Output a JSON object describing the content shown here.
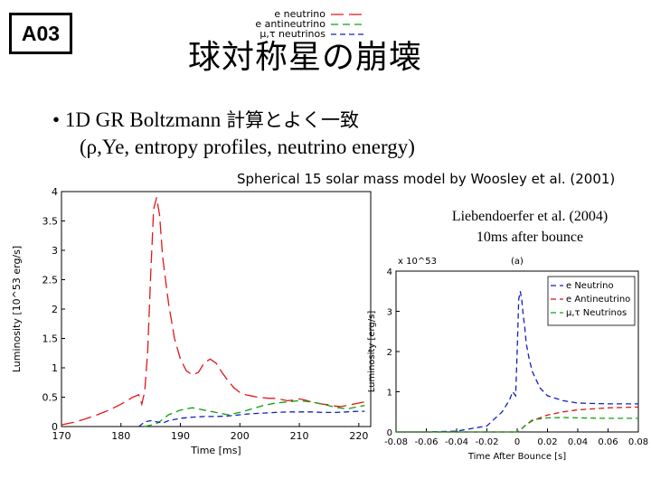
{
  "slide": {
    "badge": "A03",
    "title": "球対称星の崩壊",
    "bullet_marker": "•",
    "bullet_line1_en": "1D GR Boltzmann ",
    "bullet_line1_jp": "計算とよく一致",
    "bullet_line2": "(ρ,Ye, entropy profiles, neutrino energy)",
    "caption": "Spherical 15 solar mass model by Woosley et al. (2001)",
    "reference_line1": "Liebendoerfer et al. (2004)",
    "reference_line2": "10ms after bounce"
  },
  "chart_data": [
    {
      "type": "line",
      "xlabel": "Time [ms]",
      "ylabel": "Luminosity [10^53 erg/s]",
      "xlim": [
        170,
        222
      ],
      "ylim": [
        0,
        4
      ],
      "xticks": [
        "170",
        "180",
        "190",
        "200",
        "210",
        "220"
      ],
      "yticks": [
        "0",
        "0.5",
        "1",
        "1.5",
        "2",
        "2.5",
        "3",
        "3.5",
        "4"
      ],
      "legend_position": "top-right",
      "series": [
        {
          "name": "e neutrino",
          "color": "#e01818",
          "x": [
            170,
            172,
            174,
            176,
            178,
            180,
            182,
            183,
            183.5,
            184,
            184.5,
            185,
            185.5,
            186,
            186.5,
            187,
            188,
            189,
            190,
            191,
            192,
            193,
            194,
            195,
            196,
            197,
            198,
            199,
            200,
            201,
            202,
            203,
            204,
            205,
            206,
            207,
            208,
            209,
            210,
            211,
            212,
            213,
            214,
            215,
            216,
            217,
            218,
            219,
            220,
            221
          ],
          "y": [
            0.03,
            0.07,
            0.13,
            0.2,
            0.28,
            0.38,
            0.5,
            0.54,
            0.38,
            0.6,
            1.3,
            2.6,
            3.7,
            3.9,
            3.6,
            2.9,
            2.1,
            1.5,
            1.15,
            0.95,
            0.88,
            0.92,
            1.08,
            1.15,
            1.08,
            0.92,
            0.78,
            0.66,
            0.58,
            0.54,
            0.52,
            0.5,
            0.49,
            0.48,
            0.48,
            0.46,
            0.44,
            0.45,
            0.47,
            0.45,
            0.42,
            0.4,
            0.38,
            0.37,
            0.35,
            0.34,
            0.36,
            0.38,
            0.4,
            0.42
          ]
        },
        {
          "name": "e antineutrino",
          "color": "#10a010",
          "x": [
            184,
            186,
            187,
            188,
            190,
            192,
            194,
            196,
            198,
            200,
            202,
            204,
            206,
            208,
            210,
            212,
            214,
            216,
            218,
            220,
            221
          ],
          "y": [
            0.0,
            0.05,
            0.12,
            0.2,
            0.28,
            0.32,
            0.28,
            0.24,
            0.2,
            0.24,
            0.3,
            0.36,
            0.4,
            0.42,
            0.44,
            0.42,
            0.38,
            0.33,
            0.3,
            0.34,
            0.36
          ]
        },
        {
          "name": "μ,τ neutrinos",
          "color": "#1020c0",
          "x": [
            183,
            184,
            185,
            186,
            187,
            188,
            190,
            192,
            194,
            196,
            198,
            200,
            202,
            204,
            206,
            208,
            210,
            212,
            214,
            216,
            218,
            220,
            221
          ],
          "y": [
            0.0,
            0.08,
            0.1,
            0.08,
            0.06,
            0.1,
            0.14,
            0.16,
            0.17,
            0.17,
            0.18,
            0.2,
            0.22,
            0.23,
            0.24,
            0.25,
            0.25,
            0.25,
            0.24,
            0.24,
            0.25,
            0.26,
            0.26
          ]
        }
      ]
    },
    {
      "type": "line",
      "title": "(a)",
      "xlabel": "Time After Bounce [s]",
      "ylabel": "Luminosity [erg/s]",
      "y_multiplier": "x 10^53",
      "xlim": [
        -0.08,
        0.08
      ],
      "ylim": [
        0,
        4
      ],
      "xticks": [
        "-0.08",
        "-0.06",
        "-0.04",
        "-0.02",
        "0",
        "0.02",
        "0.04",
        "0.06",
        "0.08"
      ],
      "yticks": [
        "0",
        "1",
        "2",
        "3",
        "4"
      ],
      "legend_position": "top-right",
      "series": [
        {
          "name": "e Neutrino",
          "color": "#1020c0",
          "x": [
            -0.08,
            -0.06,
            -0.04,
            -0.02,
            -0.01,
            -0.005,
            -0.003,
            -0.001,
            0.0,
            0.001,
            0.002,
            0.003,
            0.004,
            0.005,
            0.006,
            0.008,
            0.01,
            0.015,
            0.02,
            0.03,
            0.04,
            0.06,
            0.08
          ],
          "y": [
            0.0,
            0.0,
            0.02,
            0.15,
            0.5,
            0.8,
            1.0,
            0.9,
            2.0,
            3.3,
            3.5,
            3.3,
            2.9,
            2.6,
            2.2,
            1.8,
            1.5,
            1.1,
            0.9,
            0.78,
            0.72,
            0.7,
            0.7
          ]
        },
        {
          "name": "e Antineutrino",
          "color": "#d01818",
          "x": [
            -0.08,
            -0.02,
            0.0,
            0.002,
            0.005,
            0.01,
            0.02,
            0.03,
            0.04,
            0.06,
            0.08
          ],
          "y": [
            0.0,
            0.0,
            0.0,
            0.05,
            0.15,
            0.28,
            0.42,
            0.5,
            0.55,
            0.6,
            0.62
          ]
        },
        {
          "name": "μ,τ Neutrinos",
          "color": "#10a010",
          "x": [
            -0.08,
            -0.02,
            0.0,
            0.002,
            0.005,
            0.01,
            0.02,
            0.03,
            0.04,
            0.06,
            0.08
          ],
          "y": [
            0.0,
            0.0,
            0.0,
            0.05,
            0.15,
            0.3,
            0.35,
            0.36,
            0.35,
            0.34,
            0.34
          ]
        }
      ]
    }
  ]
}
